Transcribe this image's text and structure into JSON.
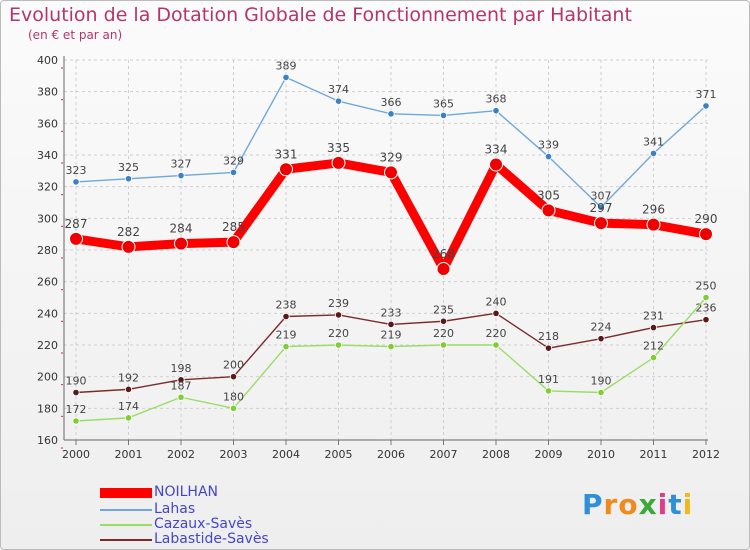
{
  "title": "Evolution de la Dotation Globale de Fonctionnement par Habitant",
  "subtitle": "(en € et par an)",
  "logo": {
    "letters": [
      "P",
      "r",
      "o",
      "x",
      "i",
      "t",
      "i"
    ],
    "colors": [
      "#2f8fd8",
      "#f08a1c",
      "#f08a1c",
      "#3aa93a",
      "#e03c8a",
      "#2f8fd8",
      "#f0b81c"
    ]
  },
  "chart_data": {
    "type": "line",
    "x": [
      "2000",
      "2001",
      "2002",
      "2003",
      "2004",
      "2005",
      "2006",
      "2007",
      "2008",
      "2009",
      "2010",
      "2011",
      "2012"
    ],
    "ylim": [
      160,
      400
    ],
    "yticks": [
      160,
      180,
      200,
      220,
      240,
      260,
      280,
      300,
      320,
      340,
      360,
      380,
      400
    ],
    "grid": true,
    "legend_position": "bottom-left",
    "series": [
      {
        "name": "NOILHAN",
        "color": "#ff0000",
        "values": [
          287,
          282,
          284,
          285,
          331,
          335,
          329,
          268,
          334,
          305,
          297,
          296,
          290
        ],
        "labels": [
          "287",
          "282",
          "284",
          "285",
          "331",
          "335",
          "329",
          "268",
          "334",
          "305",
          "297",
          "296",
          "290"
        ]
      },
      {
        "name": "Lahas",
        "color": "#6fa8dc",
        "values": [
          323,
          325,
          327,
          329,
          389,
          374,
          366,
          365,
          368,
          339,
          307,
          341,
          371
        ],
        "labels": [
          "323",
          "325",
          "327",
          "329",
          "389",
          "374",
          "366",
          "365",
          "368",
          "339",
          "307",
          "341",
          "371"
        ]
      },
      {
        "name": "Cazaux-Savès",
        "color": "#99dd66",
        "values": [
          172,
          174,
          187,
          180,
          219,
          220,
          219,
          220,
          220,
          191,
          190,
          212,
          250
        ],
        "labels": [
          "172",
          "174",
          "187",
          "180",
          "219",
          "220",
          "219",
          "220",
          "220",
          "191",
          "190",
          "212",
          "250"
        ]
      },
      {
        "name": "Labastide-Savès",
        "color": "#7b2b2b",
        "values": [
          190,
          192,
          198,
          200,
          238,
          239,
          233,
          235,
          240,
          218,
          224,
          231,
          236
        ],
        "labels": [
          "190",
          "192",
          "198",
          "200",
          "238",
          "239",
          "233",
          "235",
          "240",
          "218",
          "224",
          "231",
          "236"
        ]
      }
    ]
  }
}
